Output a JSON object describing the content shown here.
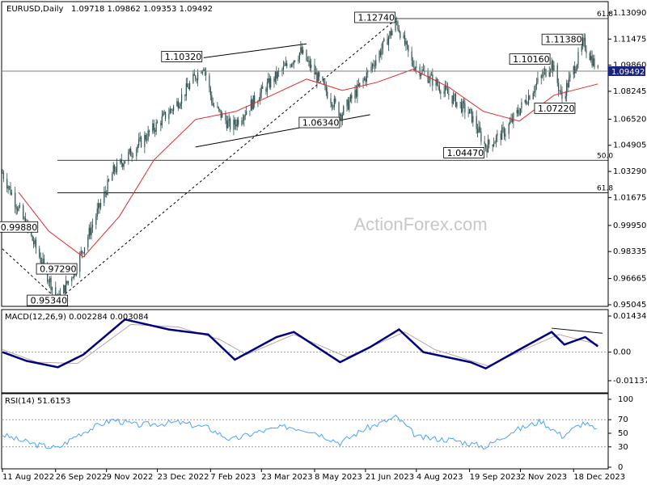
{
  "header": {
    "title": "EURUSD,Daily",
    "ohlc": "1.09718 1.09862 1.09353 1.09492"
  },
  "watermark": "ActionForex.com",
  "colors": {
    "background": "#ffffff",
    "candle": "#2f4f4f",
    "ema": "#e0292b",
    "macd": "#00007f",
    "signal": "#b9a6a6",
    "rsi": "#4aa3ff",
    "guide": "#7f7f7f",
    "last_price_bg": "#1a237e"
  },
  "chart_data": [
    {
      "type": "candlestick",
      "name": "price",
      "ylim": [
        0.95045,
        1.1309
      ],
      "y_ticks": [
        "1.13090",
        "1.11475",
        "1.09860",
        "1.08245",
        "1.06520",
        "1.04905",
        "1.03290",
        "1.01675",
        "0.99950",
        "0.98335",
        "0.96665",
        "0.95045"
      ],
      "last_price": "1.09492",
      "x_ticks": [
        "11 Aug 2022",
        "26 Sep 2022",
        "9 Nov 2022",
        "23 Dec 2022",
        "7 Feb 2023",
        "23 Mar 2023",
        "8 May 2023",
        "21 Jun 2023",
        "4 Aug 2023",
        "19 Sep 2023",
        "2 Nov 2023",
        "18 Dec 2023"
      ],
      "key_points": [
        {
          "date": "2022-08-11",
          "close": 1.032
        },
        {
          "date": "2022-09-05",
          "close": 0.992
        },
        {
          "date": "2022-09-28",
          "close": 0.9534
        },
        {
          "date": "2022-10-13",
          "close": 0.9729
        },
        {
          "date": "2022-11-15",
          "close": 1.033
        },
        {
          "date": "2023-01-09",
          "close": 1.075
        },
        {
          "date": "2023-02-01",
          "close": 1.099
        },
        {
          "date": "2023-02-09",
          "close": 1.074
        },
        {
          "date": "2023-02-25",
          "close": 1.06
        },
        {
          "date": "2023-03-28",
          "close": 1.086
        },
        {
          "date": "2023-04-26",
          "close": 1.107
        },
        {
          "date": "2023-05-31",
          "close": 1.068
        },
        {
          "date": "2023-06-20",
          "close": 1.09
        },
        {
          "date": "2023-07-18",
          "close": 1.125
        },
        {
          "date": "2023-07-31",
          "close": 1.1
        },
        {
          "date": "2023-08-20",
          "close": 1.088
        },
        {
          "date": "2023-09-20",
          "close": 1.068
        },
        {
          "date": "2023-10-03",
          "close": 1.048
        },
        {
          "date": "2023-10-20",
          "close": 1.058
        },
        {
          "date": "2023-11-15",
          "close": 1.086
        },
        {
          "date": "2023-11-29",
          "close": 1.1
        },
        {
          "date": "2023-12-08",
          "close": 1.078
        },
        {
          "date": "2023-12-27",
          "close": 1.112
        },
        {
          "date": "2024-01-08",
          "close": 1.0949
        }
      ],
      "ema_points": [
        {
          "date": "2022-08-25",
          "value": 1.02
        },
        {
          "date": "2022-09-20",
          "value": 0.996
        },
        {
          "date": "2022-10-20",
          "value": 0.98
        },
        {
          "date": "2022-11-20",
          "value": 1.005
        },
        {
          "date": "2022-12-20",
          "value": 1.04
        },
        {
          "date": "2023-01-25",
          "value": 1.065
        },
        {
          "date": "2023-03-01",
          "value": 1.07
        },
        {
          "date": "2023-04-01",
          "value": 1.08
        },
        {
          "date": "2023-05-01",
          "value": 1.09
        },
        {
          "date": "2023-06-01",
          "value": 1.083
        },
        {
          "date": "2023-07-01",
          "value": 1.088
        },
        {
          "date": "2023-08-01",
          "value": 1.096
        },
        {
          "date": "2023-09-01",
          "value": 1.085
        },
        {
          "date": "2023-10-01",
          "value": 1.07
        },
        {
          "date": "2023-11-01",
          "value": 1.064
        },
        {
          "date": "2023-12-01",
          "value": 1.08
        },
        {
          "date": "2024-01-08",
          "value": 1.087
        }
      ],
      "annotations": [
        {
          "label": "1.12740",
          "date": "2023-07-18",
          "price": 1.1274
        },
        {
          "label": "1.10320",
          "date": "2023-02-01",
          "price": 1.1032
        },
        {
          "label": "1.11380",
          "date": "2023-12-27",
          "price": 1.1138
        },
        {
          "label": "1.10160",
          "date": "2023-11-29",
          "price": 1.1016
        },
        {
          "label": "1.07220",
          "date": "2023-12-08",
          "price": 1.0722
        },
        {
          "label": "1.06340",
          "date": "2023-05-31",
          "price": 1.0634
        },
        {
          "label": "1.04470",
          "date": "2023-10-03",
          "price": 1.0447
        },
        {
          "label": "0.99880",
          "date": "2022-09-05",
          "price": 0.9988
        },
        {
          "label": "0.97290",
          "date": "2022-10-13",
          "price": 0.9729
        },
        {
          "label": "0.95340",
          "date": "2022-09-28",
          "price": 0.9534
        }
      ],
      "fib_levels": [
        {
          "label": "61.8",
          "price": 1.1274
        },
        {
          "label": "50.0",
          "price": 1.0398
        },
        {
          "label": "61.8",
          "price": 1.0197
        }
      ]
    },
    {
      "type": "line",
      "name": "MACD(12,26,9)",
      "readout": "MACD(12,26,9) 0.002284 0.003084",
      "ylim": [
        -0.011371,
        0.014342
      ],
      "y_ticks": [
        "0.014342",
        "0.00",
        "-0.011371"
      ],
      "y_tick_values": [
        0.014342,
        0.0,
        -0.011371
      ],
      "series": [
        {
          "values_key": "macd",
          "points": [
            {
              "date": "2022-08-11",
              "value": 0.0
            },
            {
              "date": "2022-09-01",
              "value": -0.0035
            },
            {
              "date": "2022-09-28",
              "value": -0.006
            },
            {
              "date": "2022-10-20",
              "value": -0.001
            },
            {
              "date": "2022-11-25",
              "value": 0.013
            },
            {
              "date": "2023-01-02",
              "value": 0.009
            },
            {
              "date": "2023-02-05",
              "value": 0.007
            },
            {
              "date": "2023-02-28",
              "value": -0.003
            },
            {
              "date": "2023-04-05",
              "value": 0.006
            },
            {
              "date": "2023-04-20",
              "value": 0.008
            },
            {
              "date": "2023-05-30",
              "value": -0.004
            },
            {
              "date": "2023-06-25",
              "value": 0.002
            },
            {
              "date": "2023-07-20",
              "value": 0.009
            },
            {
              "date": "2023-08-10",
              "value": 0.0
            },
            {
              "date": "2023-09-20",
              "value": -0.004
            },
            {
              "date": "2023-10-03",
              "value": -0.0065
            },
            {
              "date": "2023-11-01",
              "value": 0.001
            },
            {
              "date": "2023-11-29",
              "value": 0.008
            },
            {
              "date": "2023-12-10",
              "value": 0.003
            },
            {
              "date": "2023-12-28",
              "value": 0.006
            },
            {
              "date": "2024-01-08",
              "value": 0.0023
            }
          ]
        },
        {
          "values_key": "signal",
          "points": [
            {
              "date": "2022-08-11",
              "value": 0.001
            },
            {
              "date": "2022-09-10",
              "value": -0.004
            },
            {
              "date": "2022-10-15",
              "value": -0.0045
            },
            {
              "date": "2022-11-30",
              "value": 0.011
            },
            {
              "date": "2023-01-10",
              "value": 0.01
            },
            {
              "date": "2023-02-15",
              "value": 0.005
            },
            {
              "date": "2023-03-10",
              "value": -0.001
            },
            {
              "date": "2023-04-20",
              "value": 0.007
            },
            {
              "date": "2023-06-05",
              "value": -0.002
            },
            {
              "date": "2023-07-25",
              "value": 0.008
            },
            {
              "date": "2023-08-20",
              "value": 0.001
            },
            {
              "date": "2023-10-05",
              "value": -0.0055
            },
            {
              "date": "2023-11-10",
              "value": 0.002
            },
            {
              "date": "2023-12-05",
              "value": 0.007
            },
            {
              "date": "2024-01-08",
              "value": 0.0031
            }
          ]
        }
      ],
      "trendline": [
        {
          "date": "2023-11-29",
          "value": 0.0095
        },
        {
          "date": "2024-01-12",
          "value": 0.0075
        }
      ]
    },
    {
      "type": "line",
      "name": "RSI(14)",
      "readout": "RSI(14) 51.6153",
      "ylim": [
        0,
        100
      ],
      "y_ticks": [
        "100",
        "70",
        "50",
        "30",
        "0"
      ],
      "y_tick_values": [
        100,
        70,
        50,
        30,
        0
      ],
      "levels": [
        70,
        30
      ],
      "points": [
        {
          "date": "2022-08-11",
          "value": 48
        },
        {
          "date": "2022-08-25",
          "value": 40
        },
        {
          "date": "2022-09-10",
          "value": 33
        },
        {
          "date": "2022-09-28",
          "value": 28
        },
        {
          "date": "2022-10-15",
          "value": 48
        },
        {
          "date": "2022-11-05",
          "value": 64
        },
        {
          "date": "2022-11-15",
          "value": 70
        },
        {
          "date": "2022-12-05",
          "value": 62
        },
        {
          "date": "2023-01-10",
          "value": 66
        },
        {
          "date": "2023-02-05",
          "value": 58
        },
        {
          "date": "2023-02-25",
          "value": 40
        },
        {
          "date": "2023-03-20",
          "value": 52
        },
        {
          "date": "2023-04-15",
          "value": 60
        },
        {
          "date": "2023-05-05",
          "value": 54
        },
        {
          "date": "2023-05-30",
          "value": 36
        },
        {
          "date": "2023-06-20",
          "value": 56
        },
        {
          "date": "2023-07-18",
          "value": 74
        },
        {
          "date": "2023-08-05",
          "value": 44
        },
        {
          "date": "2023-09-05",
          "value": 40
        },
        {
          "date": "2023-10-03",
          "value": 30
        },
        {
          "date": "2023-10-25",
          "value": 52
        },
        {
          "date": "2023-11-20",
          "value": 68
        },
        {
          "date": "2023-12-08",
          "value": 46
        },
        {
          "date": "2023-12-27",
          "value": 66
        },
        {
          "date": "2024-01-08",
          "value": 52
        }
      ]
    }
  ]
}
